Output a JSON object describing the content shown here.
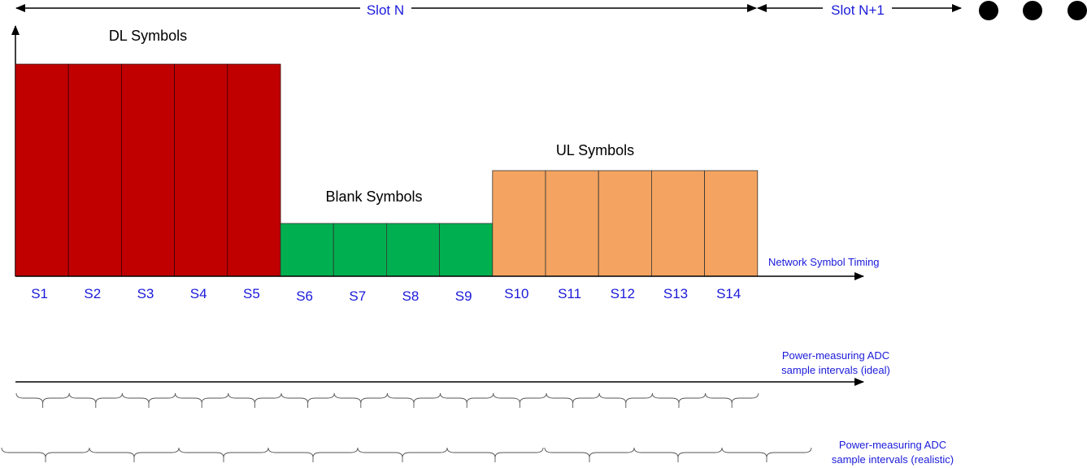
{
  "slot_header": {
    "slot_n": "Slot N",
    "slot_n1": "Slot N+1"
  },
  "groups": {
    "dl": "DL Symbols",
    "blank": "Blank Symbols",
    "ul": "UL  Symbols"
  },
  "symbols": [
    {
      "label": "S1",
      "type": "dl"
    },
    {
      "label": "S2",
      "type": "dl"
    },
    {
      "label": "S3",
      "type": "dl"
    },
    {
      "label": "S4",
      "type": "dl"
    },
    {
      "label": "S5",
      "type": "dl"
    },
    {
      "label": "S6",
      "type": "blank"
    },
    {
      "label": "S7",
      "type": "blank"
    },
    {
      "label": "S8",
      "type": "blank"
    },
    {
      "label": "S9",
      "type": "blank"
    },
    {
      "label": "S10",
      "type": "ul"
    },
    {
      "label": "S11",
      "type": "ul"
    },
    {
      "label": "S12",
      "type": "ul"
    },
    {
      "label": "S13",
      "type": "ul"
    },
    {
      "label": "S14",
      "type": "ul"
    }
  ],
  "axis_labels": {
    "network_timing": "Network Symbol Timing",
    "ideal_line1": "Power-measuring ADC",
    "ideal_line2": "sample intervals (ideal)",
    "realistic_line1": "Power-measuring ADC",
    "realistic_line2": "sample intervals (realistic)"
  },
  "colors": {
    "dl": "#c00000",
    "blank": "#00b050",
    "ul": "#f4a460",
    "label_blue": "#1a1adb"
  }
}
